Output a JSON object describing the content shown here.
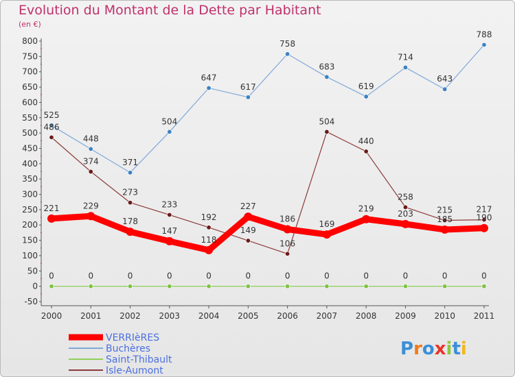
{
  "title": "Evolution du Montant de la Dette par Habitant",
  "subtitle": "(en €)",
  "logo": {
    "text": "Proxiti",
    "colors": [
      "#3a8fd8",
      "#f07a1c",
      "#3a8fd8",
      "#e8342a",
      "#8ec63f",
      "#3a8fd8",
      "#f0b81c"
    ]
  },
  "chart_data": {
    "type": "line",
    "x": [
      "2000",
      "2001",
      "2002",
      "2003",
      "2004",
      "2005",
      "2006",
      "2007",
      "2008",
      "2009",
      "2010",
      "2011"
    ],
    "ylim": [
      -50,
      800
    ],
    "yticks": [
      -50,
      0,
      50,
      100,
      150,
      200,
      250,
      300,
      350,
      400,
      450,
      500,
      550,
      600,
      650,
      700,
      750,
      800
    ],
    "grid": false,
    "legend": "bottom-left",
    "series": [
      {
        "name": "VERRIèRES",
        "color": "#ff0000",
        "marker": "#ff0000",
        "lineWidth": 9,
        "values": [
          221,
          229,
          178,
          147,
          118,
          227,
          186,
          169,
          219,
          203,
          185,
          190
        ],
        "labels": [
          "221",
          "229",
          "178",
          "147",
          "118",
          "227",
          "186",
          "169",
          "219",
          "203",
          "185",
          "190"
        ]
      },
      {
        "name": "Buchères",
        "color": "#7fa9d9",
        "marker": "#3b82c4",
        "lineWidth": 1.2,
        "values": [
          525,
          448,
          371,
          504,
          647,
          617,
          758,
          683,
          619,
          714,
          643,
          788
        ],
        "labels": [
          "525",
          "448",
          "371",
          "504",
          "647",
          "617",
          "758",
          "683",
          "619",
          "714",
          "643",
          "788"
        ]
      },
      {
        "name": "Saint-Thibault",
        "color": "#8fcf5a",
        "marker": "#7ec143",
        "lineWidth": 1.2,
        "values": [
          0,
          0,
          0,
          0,
          0,
          0,
          0,
          0,
          0,
          0,
          0,
          0
        ],
        "labels": [
          "0",
          "0",
          "0",
          "0",
          "0",
          "0",
          "0",
          "0",
          "0",
          "0",
          "0",
          "0"
        ]
      },
      {
        "name": "Isle-Aumont",
        "color": "#8b3a3a",
        "marker": "#6b1a1a",
        "lineWidth": 1.2,
        "values": [
          486,
          374,
          273,
          233,
          192,
          149,
          106,
          504,
          440,
          258,
          215,
          217
        ],
        "labels": [
          "486",
          "374",
          "273",
          "233",
          "192",
          "149",
          "106",
          "504",
          "440",
          "258",
          "215",
          "217"
        ]
      }
    ]
  }
}
